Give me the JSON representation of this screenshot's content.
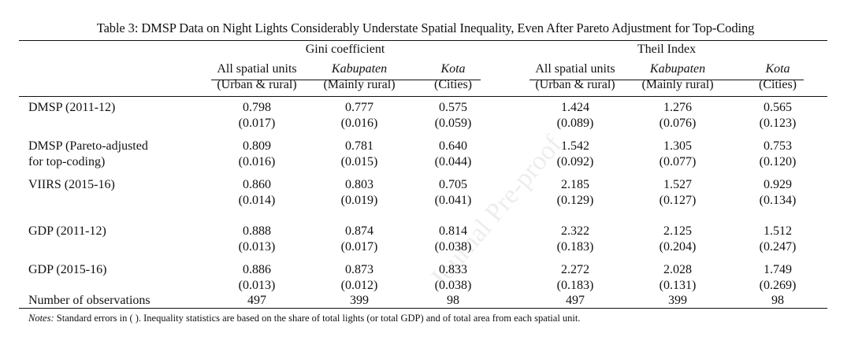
{
  "caption": "Table 3: DMSP Data on Night Lights Considerably Understate Spatial Inequality, Even After Pareto Adjustment for Top-Coding",
  "groups": [
    "Gini coefficient",
    "Theil Index"
  ],
  "columns": [
    {
      "l1": "All spatial units",
      "l2": "(Urban & rural)"
    },
    {
      "l1": "Kabupaten",
      "l2": "(Mainly rural)"
    },
    {
      "l1": "Kota",
      "l2": "(Cities)"
    },
    {
      "l1": "All spatial units",
      "l2": "(Urban & rural)"
    },
    {
      "l1": "Kabupaten",
      "l2": "(Mainly rural)"
    },
    {
      "l1": "Kota",
      "l2": "(Cities)"
    }
  ],
  "rows": [
    {
      "label1": "DMSP (2011-12)",
      "label2": "",
      "vals": [
        "0.798",
        "0.777",
        "0.575",
        "1.424",
        "1.276",
        "0.565"
      ],
      "ses": [
        "(0.017)",
        "(0.016)",
        "(0.059)",
        "(0.089)",
        "(0.076)",
        "(0.123)"
      ]
    },
    {
      "label1": "DMSP (Pareto-adjusted",
      "label2": "for top-coding)",
      "vals": [
        "0.809",
        "0.781",
        "0.640",
        "1.542",
        "1.305",
        "0.753"
      ],
      "ses": [
        "(0.016)",
        "(0.015)",
        "(0.044)",
        "(0.092)",
        "(0.077)",
        "(0.120)"
      ]
    },
    {
      "label1": "VIIRS (2015-16)",
      "label2": "",
      "vals": [
        "0.860",
        "0.803",
        "0.705",
        "2.185",
        "1.527",
        "0.929"
      ],
      "ses": [
        "(0.014)",
        "(0.019)",
        "(0.041)",
        "(0.129)",
        "(0.127)",
        "(0.134)"
      ]
    },
    {
      "label1": "GDP (2011-12)",
      "label2": "",
      "vals": [
        "0.888",
        "0.874",
        "0.814",
        "2.322",
        "2.125",
        "1.512"
      ],
      "ses": [
        "(0.013)",
        "(0.017)",
        "(0.038)",
        "(0.183)",
        "(0.204)",
        "(0.247)"
      ]
    },
    {
      "label1": "GDP (2015-16)",
      "label2": "",
      "vals": [
        "0.886",
        "0.873",
        "0.833",
        "2.272",
        "2.028",
        "1.749"
      ],
      "ses": [
        "(0.013)",
        "(0.012)",
        "(0.038)",
        "(0.183)",
        "(0.131)",
        "(0.269)"
      ]
    }
  ],
  "observations": {
    "label": "Number of observations",
    "vals": [
      "497",
      "399",
      "98",
      "497",
      "399",
      "98"
    ]
  },
  "notes": {
    "label": "Notes:",
    "text": " Standard errors in ( ). Inequality statistics are based on the share of total lights (or total GDP) and of total area from each spatial unit."
  },
  "watermark": "Journal Pre-proof"
}
